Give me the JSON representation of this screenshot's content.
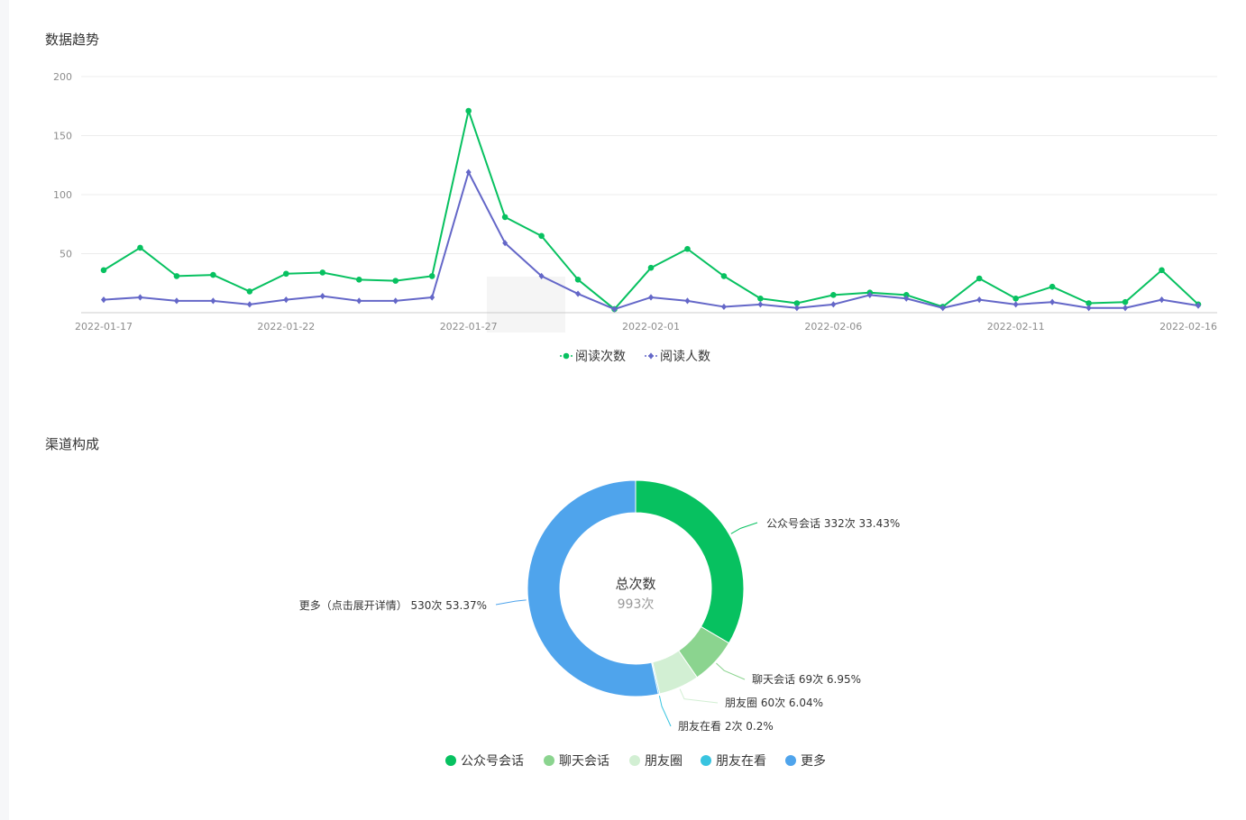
{
  "trend_section": {
    "title": "数据趋势"
  },
  "channel_section": {
    "title": "渠道构成"
  },
  "chart_data": [
    {
      "type": "line",
      "title": "数据趋势",
      "x": [
        "2022-01-17",
        "2022-01-18",
        "2022-01-19",
        "2022-01-20",
        "2022-01-21",
        "2022-01-22",
        "2022-01-23",
        "2022-01-24",
        "2022-01-25",
        "2022-01-26",
        "2022-01-27",
        "2022-01-28",
        "2022-01-29",
        "2022-01-30",
        "2022-01-31",
        "2022-02-01",
        "2022-02-02",
        "2022-02-03",
        "2022-02-04",
        "2022-02-05",
        "2022-02-06",
        "2022-02-07",
        "2022-02-08",
        "2022-02-09",
        "2022-02-10",
        "2022-02-11",
        "2022-02-12",
        "2022-02-13",
        "2022-02-14",
        "2022-02-15",
        "2022-02-16"
      ],
      "x_tick_labels": [
        "2022-01-17",
        "2022-01-22",
        "2022-01-27",
        "2022-02-01",
        "2022-02-06",
        "2022-02-11",
        "2022-02-16"
      ],
      "y_ticks": [
        50,
        100,
        150,
        200
      ],
      "ylim": [
        0,
        200
      ],
      "grid": true,
      "legend_position": "bottom-center",
      "series": [
        {
          "name": "阅读次数",
          "color": "#07c160",
          "marker": "circle",
          "values": [
            36,
            55,
            31,
            32,
            18,
            33,
            34,
            28,
            27,
            31,
            171,
            81,
            65,
            28,
            3,
            38,
            54,
            31,
            12,
            8,
            15,
            17,
            15,
            5,
            29,
            12,
            22,
            8,
            9,
            36,
            7
          ]
        },
        {
          "name": "阅读人数",
          "color": "#6467c8",
          "marker": "diamond",
          "values": [
            11,
            13,
            10,
            10,
            7,
            11,
            14,
            10,
            10,
            13,
            119,
            59,
            31,
            16,
            3,
            13,
            10,
            5,
            7,
            4,
            7,
            15,
            12,
            4,
            11,
            7,
            9,
            4,
            4,
            11,
            6
          ]
        }
      ]
    },
    {
      "type": "pie",
      "variant": "donut",
      "title": "渠道构成",
      "center_label": "总次数",
      "center_value": "993次",
      "slices": [
        {
          "name": "公众号会话",
          "value": 332,
          "percent": "33.43%",
          "label": "公众号会话 332次 33.43%",
          "color": "#07c160"
        },
        {
          "name": "聊天会话",
          "value": 69,
          "percent": "6.95%",
          "label": "聊天会话 69次 6.95%",
          "color": "#8bd48f"
        },
        {
          "name": "朋友圈",
          "value": 60,
          "percent": "6.04%",
          "label": "朋友圈 60次 6.04%",
          "color": "#d2efd3"
        },
        {
          "name": "朋友在看",
          "value": 2,
          "percent": "0.2%",
          "label": "朋友在看 2次 0.2%",
          "color": "#38c4e0"
        },
        {
          "name": "更多",
          "value": 530,
          "percent": "53.37%",
          "label": "更多（点击展开详情） 530次 53.37%",
          "color": "#4fa4ec"
        }
      ],
      "legend_position": "bottom-center"
    }
  ]
}
